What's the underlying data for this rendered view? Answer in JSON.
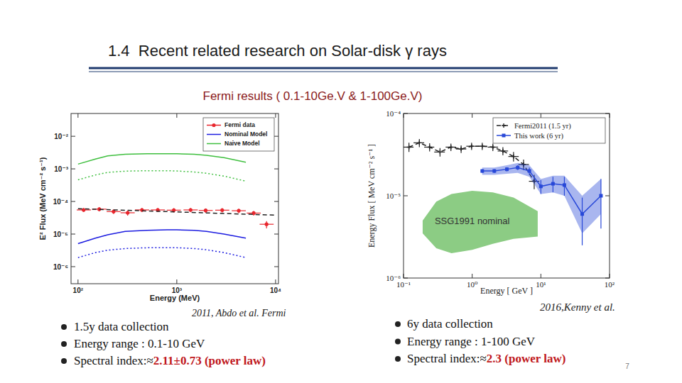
{
  "slide": {
    "title": "1.4  Recent related research on Solar-disk γ rays",
    "subtitle": "Fermi results ( 0.1-10Ge.V & 1-100Ge.V)",
    "page_number": 7
  },
  "chart_data": [
    {
      "type": "line",
      "x_label": "Energy (MeV)",
      "y_label": "E² Flux (MeV cm⁻² s⁻¹)",
      "caption": "2011, Abdo et al. Fermi",
      "notes": [
        {
          "text": "1.5y data collection"
        },
        {
          "text": "Energy range : 0.1-10 GeV"
        },
        {
          "text": "Spectral index:≈",
          "emphasis": "2.11±0.73 (power law)"
        }
      ],
      "log": true,
      "grid": false,
      "legend": "upper right",
      "xlim": [
        85,
        10700
      ],
      "ylim": [
        3e-07,
        0.05
      ],
      "xticks": [
        {
          "value": 100,
          "label": "10²"
        },
        {
          "value": 1000,
          "label": "10³"
        },
        {
          "value": 10000,
          "label": "10⁴"
        }
      ],
      "yticks": [
        {
          "value": 1e-06,
          "label": "10⁻⁶"
        },
        {
          "value": 1e-05,
          "label": "10⁻⁵"
        },
        {
          "value": 0.0001,
          "label": "10⁻⁴"
        },
        {
          "value": 0.001,
          "label": "10⁻³"
        },
        {
          "value": 0.01,
          "label": "10⁻²"
        }
      ],
      "series": [
        {
          "name": "Fermi data",
          "type": "scatter",
          "color": "#e8262d",
          "marker": "circle",
          "x": [
            114,
            164,
            229,
            318,
            444,
            642,
            933,
            1380,
            1960,
            2880,
            4240,
            6000,
            8100
          ],
          "values": [
            5.5e-05,
            5.8e-05,
            4.9e-05,
            4.5e-05,
            5.5e-05,
            5.5e-05,
            5.4e-05,
            5.5e-05,
            5.3e-05,
            5.4e-05,
            5.2e-05,
            4.4e-05,
            2e-05
          ],
          "errors": [
            8e-06,
            8e-06,
            8e-06,
            8e-06,
            8e-06,
            8e-06,
            8e-06,
            8e-06,
            8e-06,
            8e-06,
            8e-06,
            7e-06,
            5e-06
          ],
          "x_low": [
            97,
            139,
            195,
            270,
            377,
            546,
            793,
            1170,
            1670,
            2450,
            3600,
            5100,
            6900
          ],
          "x_high": [
            135,
            194,
            270,
            375,
            524,
            758,
            1100,
            1630,
            2310,
            3400,
            5000,
            7080,
            9560
          ]
        },
        {
          "type": "line",
          "color": "#222222",
          "line_style": "dashed",
          "x": [
            100,
            10000
          ],
          "values": [
            6e-05,
            3.8e-05
          ]
        },
        {
          "name": "Nominal Model",
          "type": "line",
          "color": "#1c1ce0",
          "line_style": "solid",
          "x": [
            100,
            150,
            200,
            300,
            500,
            800,
            1000,
            1500,
            2000,
            3000,
            5000
          ],
          "values": [
            5.1e-06,
            7.5e-06,
            9.5e-06,
            1.2e-05,
            1.3e-05,
            1.35e-05,
            1.35e-05,
            1.3e-05,
            1.2e-05,
            1e-05,
            7.5e-06
          ]
        },
        {
          "type": "line",
          "color": "#1c1ce0",
          "line_style": "dotted",
          "x": [
            100,
            150,
            200,
            300,
            500,
            800,
            1000,
            1500,
            2000,
            3000,
            5000
          ],
          "values": [
            1.9e-06,
            2.7e-06,
            3.2e-06,
            3.6e-06,
            3.8e-06,
            3.8e-06,
            3.8e-06,
            3.6e-06,
            3.3e-06,
            2.7e-06,
            1.9e-06
          ]
        },
        {
          "name": "Naive Model",
          "type": "line",
          "color": "#3fbf3f",
          "line_style": "solid",
          "x": [
            100,
            150,
            200,
            300,
            500,
            800,
            1000,
            1500,
            2000,
            3000,
            5000
          ],
          "values": [
            0.0014,
            0.002,
            0.0025,
            0.0028,
            0.0029,
            0.0029,
            0.0029,
            0.0028,
            0.0026,
            0.0022,
            0.0016
          ]
        },
        {
          "type": "line",
          "color": "#3fbf3f",
          "line_style": "dotted",
          "x": [
            100,
            150,
            200,
            300,
            500,
            800,
            1000,
            1500,
            2000,
            3000,
            5000
          ],
          "values": [
            0.00046,
            0.00065,
            0.00078,
            0.00085,
            0.00088,
            0.00088,
            0.00086,
            0.0008,
            0.00073,
            0.0006,
            0.00042
          ]
        }
      ]
    },
    {
      "type": "line",
      "x_label": "Energy [ GeV ]",
      "y_label": "Energy Flux [ MeV cm⁻² s⁻¹ ]",
      "caption": "2016,Kenny et al.",
      "notes": [
        {
          "text": "6y data collection"
        },
        {
          "text": "Energy range : 1-100 GeV"
        },
        {
          "text": "Spectral index:≈",
          "emphasis": "2.3 (power law)"
        }
      ],
      "log": true,
      "grid": false,
      "legend": "upper right",
      "xlim": [
        0.1,
        100
      ],
      "ylim": [
        1e-06,
        0.0001
      ],
      "xticks": [
        {
          "value": 0.1,
          "label": "10⁻¹"
        },
        {
          "value": 1,
          "label": "10⁰"
        },
        {
          "value": 10,
          "label": "10¹"
        },
        {
          "value": 100,
          "label": "10²"
        }
      ],
      "yticks": [
        {
          "value": 1e-06,
          "label": "10⁻⁶"
        },
        {
          "value": 1e-05,
          "label": "10⁻⁵"
        },
        {
          "value": 0.0001,
          "label": "10⁻⁴"
        }
      ],
      "series": [
        {
          "name": "Fermi2011 (1.5 yr)",
          "type": "line",
          "color": "#222222",
          "line_style": "dashed",
          "marker": "plus",
          "x": [
            0.12,
            0.17,
            0.24,
            0.34,
            0.49,
            0.69,
            0.98,
            1.4,
            2.0,
            2.8,
            4.0,
            5.6,
            8.0
          ],
          "values": [
            3.9e-05,
            4.4e-05,
            3.9e-05,
            3.4e-05,
            3.9e-05,
            3.7e-05,
            4e-05,
            4e-05,
            3.9e-05,
            3.5e-05,
            3e-05,
            2.4e-05,
            1.5e-05
          ],
          "errors": [
            5e-06,
            5e-06,
            4.5e-06,
            4e-06,
            4e-06,
            4e-06,
            4e-06,
            4e-06,
            4e-06,
            4e-06,
            4e-06,
            3.5e-06,
            3e-06
          ],
          "x_low": [
            0.1,
            0.14,
            0.2,
            0.28,
            0.41,
            0.58,
            0.82,
            1.17,
            1.68,
            2.35,
            3.36,
            4.7,
            6.7
          ],
          "x_high": [
            0.14,
            0.2,
            0.28,
            0.4,
            0.58,
            0.82,
            1.16,
            1.66,
            2.38,
            3.33,
            4.76,
            6.7,
            9.5
          ]
        },
        {
          "name": "This work (6 yr)",
          "type": "line",
          "color": "#2848d8",
          "line_style": "solid",
          "marker": "square",
          "x": [
            1.4,
            2.1,
            3.2,
            4.6,
            6.8,
            10,
            15,
            22,
            40,
            75
          ],
          "values": [
            2e-05,
            2e-05,
            2.1e-05,
            2.2e-05,
            2e-05,
            1.3e-05,
            1.4e-05,
            1.35e-05,
            6e-06,
            1e-05
          ],
          "errors": [
            1e-06,
            1e-06,
            1.2e-06,
            1.5e-06,
            2e-06,
            2.5e-06,
            3e-06,
            3.5e-06,
            3.5e-06,
            6e-06
          ],
          "band_low": [
            1.8e-05,
            1.8e-05,
            1.85e-05,
            1.9e-05,
            1.7e-05,
            1.05e-05,
            1.1e-05,
            1e-05,
            3.5e-06,
            6e-06
          ],
          "band_high": [
            2.2e-05,
            2.2e-05,
            2.35e-05,
            2.5e-05,
            2.35e-05,
            1.6e-05,
            1.75e-05,
            1.75e-05,
            1e-05,
            1.6e-05
          ]
        },
        {
          "name": "SSG1991 nominal",
          "type": "band",
          "color": "#8ccc84",
          "x": [
            0.19,
            0.3,
            0.5,
            1,
            2,
            4,
            9
          ],
          "low": [
            3.5e-06,
            2.3e-06,
            2e-06,
            2.2e-06,
            2.6e-06,
            3e-06,
            3.2e-06
          ],
          "high": [
            5e-06,
            8.5e-06,
            1.05e-05,
            1.15e-05,
            1.1e-05,
            9.5e-06,
            6.5e-06
          ]
        }
      ]
    }
  ]
}
